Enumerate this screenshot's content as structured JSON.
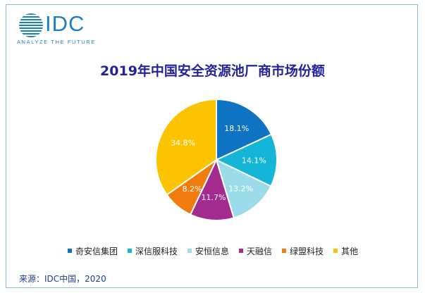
{
  "logo": {
    "brand": "IDC",
    "tagline": "ANALYZE THE FUTURE"
  },
  "chart_data": {
    "type": "pie",
    "title": "2019年中国安全资源池厂商市场份额",
    "categories": [
      "奇安信集团",
      "深信服科技",
      "安恒信息",
      "天融信",
      "绿盟科技",
      "其他"
    ],
    "values": [
      18.1,
      14.1,
      13.2,
      11.7,
      8.2,
      34.8
    ],
    "labels": [
      "18.1%",
      "14.1%",
      "13.2%",
      "11.7%",
      "8.2%",
      "34.8%"
    ],
    "colors": [
      "#0e73c3",
      "#14b5d6",
      "#9cdcea",
      "#a32a8f",
      "#f07c0d",
      "#fbc300"
    ],
    "legend_position": "bottom",
    "start_angle_deg": 0,
    "direction": "clockwise"
  },
  "source": "来源：IDC中国，2020"
}
